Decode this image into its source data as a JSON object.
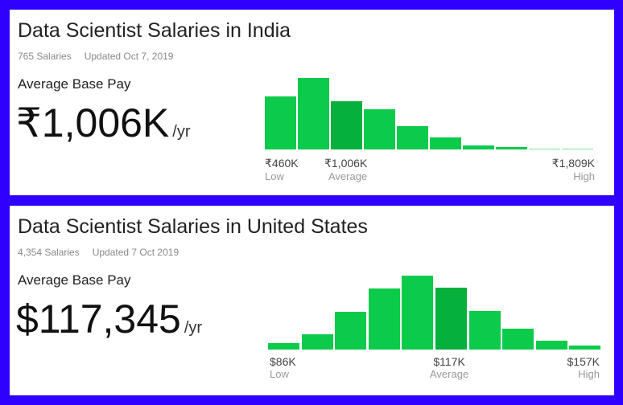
{
  "cards": [
    {
      "title": "Data Scientist Salaries in India",
      "count": "765 Salaries",
      "updated": "Updated Oct 7, 2019",
      "label": "Average Base Pay",
      "value": "₹1,006K",
      "unit": "/yr",
      "histogram": [
        74,
        100,
        67,
        56,
        33,
        17,
        6,
        3,
        1,
        1
      ],
      "avg_bin": 2,
      "ticks": [
        {
          "value": "₹460K",
          "label": "Low"
        },
        {
          "value": "₹1,006K",
          "label": "Average"
        },
        {
          "value": "₹1,809K",
          "label": "High"
        }
      ]
    },
    {
      "title": "Data Scientist Salaries in United States",
      "count": "4,354 Salaries",
      "updated": "Updated 7 Oct 2019",
      "label": "Average Base Pay",
      "value": "$117,345",
      "unit": "/yr",
      "histogram": [
        9,
        21,
        51,
        83,
        100,
        84,
        52,
        28,
        12,
        5
      ],
      "avg_bin": 5,
      "ticks": [
        {
          "value": "$86K",
          "label": "Low"
        },
        {
          "value": "$117K",
          "label": "Average"
        },
        {
          "value": "$157K",
          "label": "High"
        }
      ]
    }
  ],
  "colors": {
    "border": "#2f00ff",
    "bar": "#0ccb4b",
    "avg_bar": "#05b03c",
    "faint_bar": "#7fe49c"
  }
}
